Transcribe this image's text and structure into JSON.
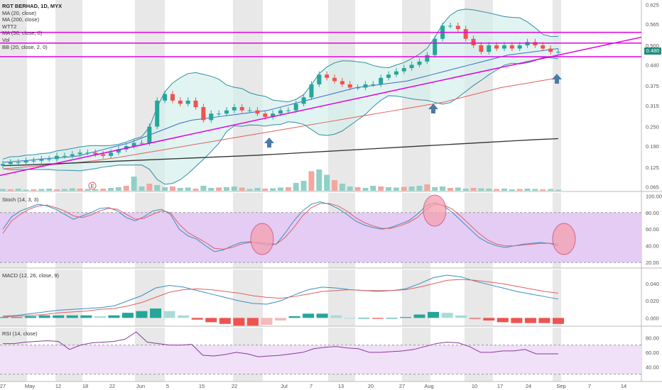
{
  "header": {
    "title": "RGT BERHAD, 1D, MYX",
    "legend": [
      "MA (20, close)",
      "MA (200, close)",
      "WTT2",
      "MA (50, close, 0)",
      "Vol",
      "BB (20, close, 2, 0)"
    ]
  },
  "price_badge": "0.480",
  "earnings_marker": "E",
  "panels": {
    "stoch": "Stoch (14, 3, 3)",
    "macd": "MACD (12, 26, close, 9)",
    "rsi": "RSI (14, close)"
  },
  "x_labels": [
    "27",
    "May",
    "12",
    "18",
    "22",
    "Jun",
    "5",
    "15",
    "22",
    "Jul",
    "7",
    "13",
    "20",
    "27",
    "Aug",
    "10",
    "17",
    "24",
    "Sep",
    "7",
    "14"
  ],
  "colors": {
    "up": "#26a69a",
    "down": "#ef5350",
    "magenta": "#e000e0",
    "arrow": "#4a7aa7",
    "ma_red": "#e06060",
    "ma_black": "#333333",
    "bb": "#2e8fa0",
    "pink": "#f4a0b0"
  },
  "chart_data": [
    {
      "type": "candlestick",
      "title": "RGT BERHAD, 1D, MYX",
      "yticks": [
        "0.625",
        "0.565",
        "0.500",
        "0.440",
        "0.375",
        "0.315",
        "0.250",
        "0.190",
        "0.125",
        "0.065"
      ],
      "ylim": [
        0.055,
        0.635
      ],
      "close_series": [
        0.135,
        0.14,
        0.14,
        0.145,
        0.145,
        0.15,
        0.15,
        0.16,
        0.16,
        0.165,
        0.17,
        0.17,
        0.165,
        0.16,
        0.17,
        0.18,
        0.19,
        0.2,
        0.2,
        0.25,
        0.33,
        0.35,
        0.33,
        0.32,
        0.33,
        0.31,
        0.27,
        0.29,
        0.29,
        0.3,
        0.31,
        0.3,
        0.3,
        0.29,
        0.28,
        0.29,
        0.3,
        0.3,
        0.32,
        0.34,
        0.38,
        0.41,
        0.4,
        0.39,
        0.38,
        0.37,
        0.37,
        0.38,
        0.38,
        0.4,
        0.41,
        0.42,
        0.43,
        0.44,
        0.45,
        0.47,
        0.52,
        0.56,
        0.56,
        0.55,
        0.52,
        0.5,
        0.48,
        0.5,
        0.49,
        0.5,
        0.49,
        0.5,
        0.51,
        0.5,
        0.49,
        0.48,
        0.48
      ],
      "ma20": [
        0.14,
        0.143,
        0.146,
        0.15,
        0.153,
        0.156,
        0.16,
        0.17,
        0.18,
        0.19,
        0.2,
        0.215,
        0.23,
        0.245,
        0.26,
        0.27,
        0.275,
        0.28,
        0.285,
        0.29,
        0.295,
        0.3,
        0.31,
        0.32,
        0.33,
        0.34,
        0.35,
        0.36,
        0.37,
        0.375,
        0.38,
        0.385,
        0.39,
        0.4,
        0.41,
        0.42,
        0.43,
        0.44,
        0.45,
        0.46,
        0.47,
        0.475,
        0.48,
        0.485,
        0.49
      ],
      "ma200": [
        0.13,
        0.132,
        0.135,
        0.138,
        0.141,
        0.144,
        0.147,
        0.15,
        0.153,
        0.156,
        0.159,
        0.162,
        0.166,
        0.17,
        0.174,
        0.178,
        0.182,
        0.186,
        0.19,
        0.194,
        0.198,
        0.202,
        0.206,
        0.21,
        0.213
      ],
      "ma50": [
        0.12,
        0.125,
        0.13,
        0.135,
        0.14,
        0.147,
        0.155,
        0.165,
        0.175,
        0.185,
        0.195,
        0.205,
        0.215,
        0.225,
        0.235,
        0.245,
        0.255,
        0.265,
        0.275,
        0.285,
        0.295,
        0.305,
        0.315,
        0.325,
        0.34,
        0.355,
        0.37,
        0.38,
        0.39,
        0.4
      ],
      "volume": [
        5,
        4,
        6,
        3,
        4,
        5,
        6,
        4,
        5,
        7,
        6,
        5,
        4,
        6,
        8,
        10,
        14,
        40,
        12,
        20,
        16,
        10,
        12,
        8,
        9,
        6,
        14,
        8,
        9,
        10,
        12,
        9,
        5,
        8,
        6,
        7,
        9,
        10,
        22,
        28,
        55,
        60,
        45,
        30,
        20,
        12,
        10,
        8,
        14,
        12,
        10,
        9,
        11,
        12,
        14,
        18,
        10,
        12,
        8,
        9,
        6,
        8,
        7,
        6,
        5,
        6,
        4,
        5,
        6,
        5,
        4,
        5,
        3
      ],
      "support_levels": [
        0.54,
        0.507,
        0.465
      ]
    },
    {
      "type": "line",
      "title": "Stoch (14, 3, 3)",
      "yticks": [
        "100.00",
        "80.00",
        "60.00",
        "40.00",
        "20.00"
      ],
      "ylim": [
        15,
        102
      ],
      "band": [
        20,
        80
      ],
      "series": [
        {
          "values": [
            60,
            75,
            82,
            86,
            90,
            88,
            84,
            78,
            72,
            76,
            80,
            85,
            86,
            82,
            74,
            70,
            75,
            82,
            84,
            78,
            60,
            52,
            48,
            40,
            33,
            35,
            40,
            44,
            45,
            43,
            41,
            42,
            55,
            70,
            82,
            90,
            93,
            90,
            85,
            78,
            70,
            65,
            62,
            60,
            62,
            66,
            70,
            78,
            88,
            92,
            88,
            80,
            70,
            60,
            50,
            44,
            40,
            38,
            40,
            42,
            43,
            44,
            43,
            40
          ]
        },
        {
          "values": [
            55,
            70,
            78,
            84,
            88,
            89,
            86,
            82,
            76,
            74,
            77,
            82,
            85,
            84,
            78,
            72,
            73,
            78,
            82,
            80,
            66,
            56,
            50,
            44,
            37,
            36,
            38,
            42,
            44,
            44,
            43,
            42,
            50,
            62,
            76,
            86,
            91,
            91,
            88,
            82,
            74,
            68,
            64,
            61,
            61,
            64,
            68,
            74,
            84,
            90,
            89,
            84,
            75,
            65,
            55,
            47,
            42,
            40,
            40,
            41,
            42,
            43,
            43,
            42
          ]
        }
      ]
    },
    {
      "type": "line",
      "title": "MACD (12, 26, close, 9)",
      "yticks": [
        "0.040",
        "0.020",
        "0.000"
      ],
      "ylim": [
        -0.008,
        0.055
      ],
      "series": [
        {
          "values": [
            0.002,
            0.003,
            0.005,
            0.007,
            0.009,
            0.01,
            0.011,
            0.012,
            0.014,
            0.02,
            0.026,
            0.035,
            0.038,
            0.036,
            0.032,
            0.028,
            0.024,
            0.02,
            0.017,
            0.016,
            0.02,
            0.027,
            0.033,
            0.036,
            0.035,
            0.033,
            0.032,
            0.031,
            0.032,
            0.034,
            0.04,
            0.047,
            0.05,
            0.048,
            0.043,
            0.039,
            0.035,
            0.031,
            0.028,
            0.025,
            0.022
          ]
        },
        {
          "values": [
            0.001,
            0.002,
            0.003,
            0.004,
            0.006,
            0.007,
            0.008,
            0.01,
            0.011,
            0.014,
            0.018,
            0.024,
            0.03,
            0.033,
            0.034,
            0.033,
            0.031,
            0.029,
            0.026,
            0.024,
            0.023,
            0.025,
            0.028,
            0.031,
            0.032,
            0.033,
            0.032,
            0.032,
            0.032,
            0.033,
            0.036,
            0.04,
            0.044,
            0.045,
            0.044,
            0.042,
            0.04,
            0.037,
            0.034,
            0.031,
            0.029
          ]
        }
      ],
      "histogram": [
        0.001,
        0.001,
        0.002,
        0.003,
        0.003,
        0.003,
        0.003,
        0.002,
        0.003,
        0.006,
        0.008,
        0.011,
        0.008,
        0.003,
        -0.002,
        -0.005,
        -0.007,
        -0.009,
        -0.009,
        -0.008,
        -0.003,
        0.002,
        0.005,
        0.005,
        0.003,
        0,
        0,
        -0.001,
        0,
        0.001,
        0.004,
        0.007,
        0.006,
        0.003,
        -0.001,
        -0.003,
        -0.005,
        -0.006,
        -0.006,
        -0.006,
        -0.007
      ]
    },
    {
      "type": "line",
      "title": "RSI (14, close)",
      "yticks": [
        "80.00",
        "60.00",
        "40.00"
      ],
      "ylim": [
        22,
        92
      ],
      "band": [
        30,
        70
      ],
      "series": [
        {
          "values": [
            72,
            72,
            74,
            75,
            76,
            75,
            64,
            70,
            73,
            74,
            75,
            78,
            88,
            74,
            72,
            70,
            70,
            71,
            56,
            55,
            57,
            60,
            58,
            54,
            55,
            56,
            58,
            60,
            65,
            67,
            68,
            66,
            65,
            60,
            60,
            61,
            62,
            64,
            68,
            72,
            74,
            73,
            68,
            60,
            60,
            62,
            62,
            64,
            58,
            58,
            58
          ]
        }
      ]
    }
  ]
}
